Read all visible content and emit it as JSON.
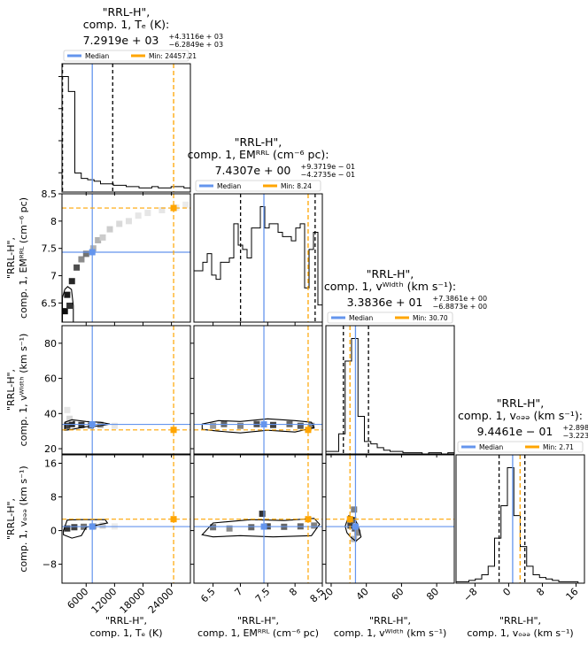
{
  "colors": {
    "median": "#6495ed",
    "min": "#ffa500",
    "hist": "#000000",
    "quantile": "#000000"
  },
  "legend": {
    "median_label": "Median",
    "min_prefix": "Min: "
  },
  "params": [
    {
      "key": "te",
      "title": [
        "\"RRL-H\",",
        "comp. 1, Tₑ (K):"
      ],
      "value_base": "7.2919e + 03",
      "value_plus": "+4.3116e + 03",
      "value_minus": "−6.2849e + 03",
      "xlabel": [
        "\"RRL-H\",",
        "comp. 1, Tₑ (K)"
      ],
      "ylabel": [],
      "range": [
        900,
        28000
      ],
      "ticks": [
        6000,
        12000,
        18000,
        24000
      ],
      "median": 7292,
      "min": 24457.21,
      "min_label": "24457.21",
      "q_lo": 1007,
      "q_hi": 11603
    },
    {
      "key": "em",
      "title": [
        "\"RRL-H\",",
        "comp. 1, EMᴿᴿᴸ (cm⁻⁶ pc):"
      ],
      "value_base": "7.4307e + 00",
      "value_plus": "+9.3719e − 01",
      "value_minus": "−4.2735e − 01",
      "xlabel": [
        "\"RRL-H\",",
        "comp. 1, EMᴿᴿᴸ (cm⁻⁶ pc)"
      ],
      "ylabel": [
        "\"RRL-H\",",
        "comp. 1, EMᴿᴿᴸ (cm⁻⁶ pc)"
      ],
      "range": [
        6.15,
        8.5
      ],
      "ticks": [
        6.5,
        7.0,
        7.5,
        8.0,
        8.5
      ],
      "median": 7.4307,
      "min": 8.24,
      "min_label": "8.24",
      "q_lo": 7.003,
      "q_hi": 8.368
    },
    {
      "key": "width",
      "title": [
        "\"RRL-H\",",
        "comp. 1, vᵂᴵᵈᵗʰ (km s⁻¹):"
      ],
      "value_base": "3.3836e + 01",
      "value_plus": "+7.3861e + 00",
      "value_minus": "−6.8873e + 00",
      "xlabel": [
        "\"RRL-H\",",
        "comp. 1, vᵂᴵᵈᵗʰ (km s⁻¹)"
      ],
      "ylabel": [
        "\"RRL-H\",",
        "comp. 1, vᵂᴵᵈᵗʰ (km s⁻¹)"
      ],
      "range": [
        17,
        90
      ],
      "ticks": [
        20,
        40,
        60,
        80
      ],
      "median": 33.836,
      "min": 30.7,
      "min_label": "30.70",
      "q_lo": 26.95,
      "q_hi": 41.22
    },
    {
      "key": "off",
      "title": [
        "\"RRL-H\",",
        "comp. 1, vₒₔₔ (km s⁻¹):"
      ],
      "value_base": "9.4461e − 01",
      "value_plus": "+2.8986e + 00",
      "value_minus": "−3.2230e + 00",
      "xlabel": [
        "\"RRL-H\",",
        "comp. 1, vₒₔₔ (km s⁻¹)"
      ],
      "ylabel": [
        "\"RRL-H\",",
        "comp. 1, vₒₔₔ (km s⁻¹)"
      ],
      "range": [
        -12.5,
        18
      ],
      "ticks": [
        -8,
        0,
        8,
        16
      ],
      "median": 0.9446,
      "min": 2.71,
      "min_label": "2.71",
      "q_lo": -2.278,
      "q_hi": 3.843
    }
  ],
  "chart_data": {
    "type": "corner",
    "hist": {
      "te": [
        85,
        74,
        14,
        10,
        9,
        8,
        6,
        6,
        5,
        5,
        4,
        4,
        3,
        3,
        4,
        3,
        3,
        4,
        4,
        3
      ],
      "em": [
        12,
        12,
        14,
        16,
        11,
        10,
        14,
        14,
        15,
        23,
        18,
        17,
        15,
        22,
        22,
        27,
        22,
        23,
        23,
        21,
        20,
        20,
        19,
        22,
        23,
        8,
        17,
        21,
        4
      ],
      "width": [
        2,
        2,
        16,
        74,
        92,
        30,
        10,
        8,
        5,
        3,
        2,
        2,
        1,
        1,
        1,
        0,
        1,
        1,
        0,
        1
      ],
      "off": [
        1,
        1,
        2,
        3,
        6,
        12,
        32,
        55,
        82,
        48,
        26,
        12,
        6,
        4,
        3,
        2,
        1,
        1,
        1,
        0
      ]
    },
    "contours": {
      "em_te": [
        [
          1000,
          6.15
        ],
        [
          3300,
          6.15
        ],
        [
          3300,
          6.45
        ],
        [
          2900,
          6.75
        ],
        [
          2100,
          6.8
        ],
        [
          1500,
          6.75
        ],
        [
          1000,
          6.6
        ]
      ],
      "width_te": [
        [
          1500,
          35
        ],
        [
          3000,
          36.5
        ],
        [
          6000,
          35.5
        ],
        [
          9000,
          35
        ],
        [
          11000,
          34
        ],
        [
          9000,
          33
        ],
        [
          6000,
          32.5
        ],
        [
          3000,
          31
        ],
        [
          1500,
          30.5
        ]
      ],
      "off_te": [
        [
          1200,
          0
        ],
        [
          2000,
          2.5
        ],
        [
          4500,
          2.6
        ],
        [
          10000,
          2.6
        ],
        [
          10500,
          1.8
        ],
        [
          6000,
          0.8
        ],
        [
          5000,
          -1.2
        ],
        [
          3000,
          -1.8
        ],
        [
          1200,
          -1
        ]
      ],
      "width_em": [
        [
          6.3,
          34
        ],
        [
          6.6,
          36
        ],
        [
          7.0,
          35.5
        ],
        [
          7.5,
          37
        ],
        [
          8.0,
          36
        ],
        [
          8.3,
          35
        ],
        [
          8.35,
          32
        ],
        [
          8.0,
          29.5
        ],
        [
          7.5,
          30.5
        ],
        [
          7.0,
          29
        ],
        [
          6.6,
          30
        ],
        [
          6.3,
          31
        ]
      ],
      "off_em": [
        [
          6.3,
          -1
        ],
        [
          6.5,
          1.8
        ],
        [
          7.2,
          2.6
        ],
        [
          7.8,
          2.4
        ],
        [
          8.35,
          2.9
        ],
        [
          8.45,
          1.5
        ],
        [
          8.3,
          -1.2
        ],
        [
          7.6,
          -1.5
        ],
        [
          7.0,
          -1.2
        ],
        [
          6.5,
          -1.5
        ]
      ],
      "off_width": [
        [
          28,
          1
        ],
        [
          30,
          3.5
        ],
        [
          33,
          3
        ],
        [
          35,
          1.5
        ],
        [
          37,
          -1.5
        ],
        [
          34,
          -2.5
        ],
        [
          31,
          -1.5
        ],
        [
          29,
          -0.5
        ]
      ]
    },
    "density": {
      "em_te": [
        [
          1500,
          6.35,
          0.95
        ],
        [
          2500,
          6.45,
          0.8
        ],
        [
          2000,
          6.65,
          0.9
        ],
        [
          3000,
          6.9,
          0.85
        ],
        [
          4000,
          7.15,
          0.7
        ],
        [
          5000,
          7.3,
          0.45
        ],
        [
          6000,
          7.4,
          0.55
        ],
        [
          7500,
          7.5,
          0.3
        ],
        [
          8500,
          7.65,
          0.3
        ],
        [
          9500,
          7.7,
          0.2
        ],
        [
          11000,
          7.85,
          0.2
        ],
        [
          13000,
          7.95,
          0.15
        ],
        [
          15000,
          8.0,
          0.12
        ],
        [
          17000,
          8.1,
          0.1
        ],
        [
          19000,
          8.15,
          0.1
        ],
        [
          22000,
          8.2,
          0.1
        ],
        [
          25000,
          8.25,
          0.08
        ],
        [
          27000,
          8.3,
          0.08
        ]
      ],
      "width_te": [
        [
          2000,
          33,
          0.75
        ],
        [
          3000,
          34,
          0.85
        ],
        [
          5000,
          33.5,
          0.8
        ],
        [
          7000,
          33.2,
          0.6
        ],
        [
          9000,
          33.6,
          0.4
        ],
        [
          12000,
          33,
          0.1
        ],
        [
          2500,
          37,
          0.15
        ],
        [
          2000,
          42,
          0.1
        ]
      ],
      "off_te": [
        [
          2000,
          0.5,
          0.8
        ],
        [
          3500,
          0.8,
          0.75
        ],
        [
          5500,
          0.9,
          0.55
        ],
        [
          7500,
          1.0,
          0.4
        ],
        [
          9500,
          1.2,
          0.2
        ],
        [
          12000,
          1.0,
          0.08
        ]
      ],
      "width_em": [
        [
          6.5,
          33,
          0.4
        ],
        [
          6.7,
          34,
          0.6
        ],
        [
          7.0,
          33,
          0.5
        ],
        [
          7.3,
          34,
          0.7
        ],
        [
          7.6,
          33.5,
          0.75
        ],
        [
          7.9,
          34,
          0.6
        ],
        [
          8.1,
          33,
          0.65
        ],
        [
          8.3,
          33,
          0.5
        ]
      ],
      "off_em": [
        [
          6.5,
          0.8,
          0.55
        ],
        [
          6.8,
          0.5,
          0.45
        ],
        [
          7.2,
          0.8,
          0.6
        ],
        [
          7.5,
          1.0,
          0.7
        ],
        [
          7.8,
          0.9,
          0.6
        ],
        [
          8.1,
          1.0,
          0.6
        ],
        [
          8.35,
          1.2,
          0.5
        ],
        [
          7.4,
          4.0,
          0.8
        ]
      ],
      "off_width": [
        [
          31,
          1.2,
          0.75
        ],
        [
          32.5,
          2.5,
          0.6
        ],
        [
          33.5,
          0.5,
          0.65
        ],
        [
          35,
          -0.5,
          0.45
        ],
        [
          33,
          5,
          0.5
        ],
        [
          33,
          -2,
          0.3
        ]
      ]
    }
  }
}
